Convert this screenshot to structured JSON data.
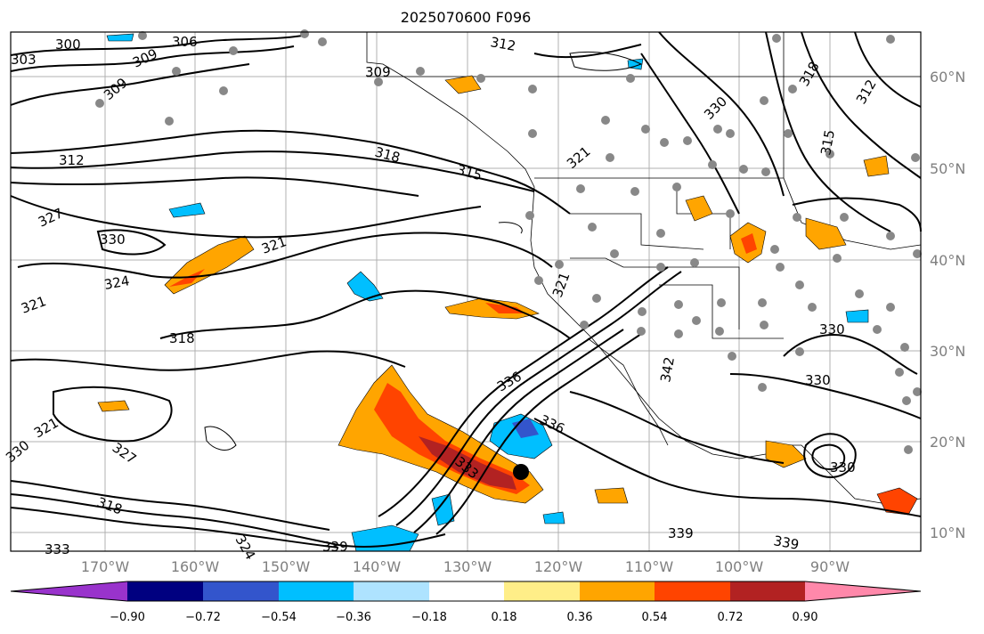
{
  "title": "2025070600 F096",
  "map": {
    "lon_labels": [
      "170°W",
      "160°W",
      "150°W",
      "140°W",
      "130°W",
      "120°W",
      "110°W",
      "100°W",
      "90°W"
    ],
    "lat_labels": [
      "60°N",
      "50°N",
      "40°N",
      "30°N",
      "20°N",
      "10°N"
    ],
    "contour_labels": [
      "300",
      "306",
      "309",
      "303",
      "309",
      "309",
      "312",
      "312",
      "318",
      "315",
      "321",
      "324",
      "330",
      "321",
      "327",
      "321",
      "318",
      "330",
      "327",
      "318",
      "324",
      "333",
      "339",
      "336",
      "336",
      "333",
      "330",
      "318",
      "315",
      "312",
      "339",
      "339",
      "342",
      "330",
      "330",
      "321",
      "330",
      "321"
    ],
    "storm_marker": "tropical-cyclone-dot"
  },
  "colorbar": {
    "ticks": [
      "−0.90",
      "−0.72",
      "−0.54",
      "−0.36",
      "−0.18",
      "0.18",
      "0.36",
      "0.54",
      "0.72",
      "0.90"
    ],
    "colors": [
      "#9933cc",
      "#000080",
      "#3355cc",
      "#00bfff",
      "#aee3ff",
      "#ffffff",
      "#ffee88",
      "#ffa500",
      "#ff4400",
      "#b22222",
      "#ff88aa"
    ]
  }
}
